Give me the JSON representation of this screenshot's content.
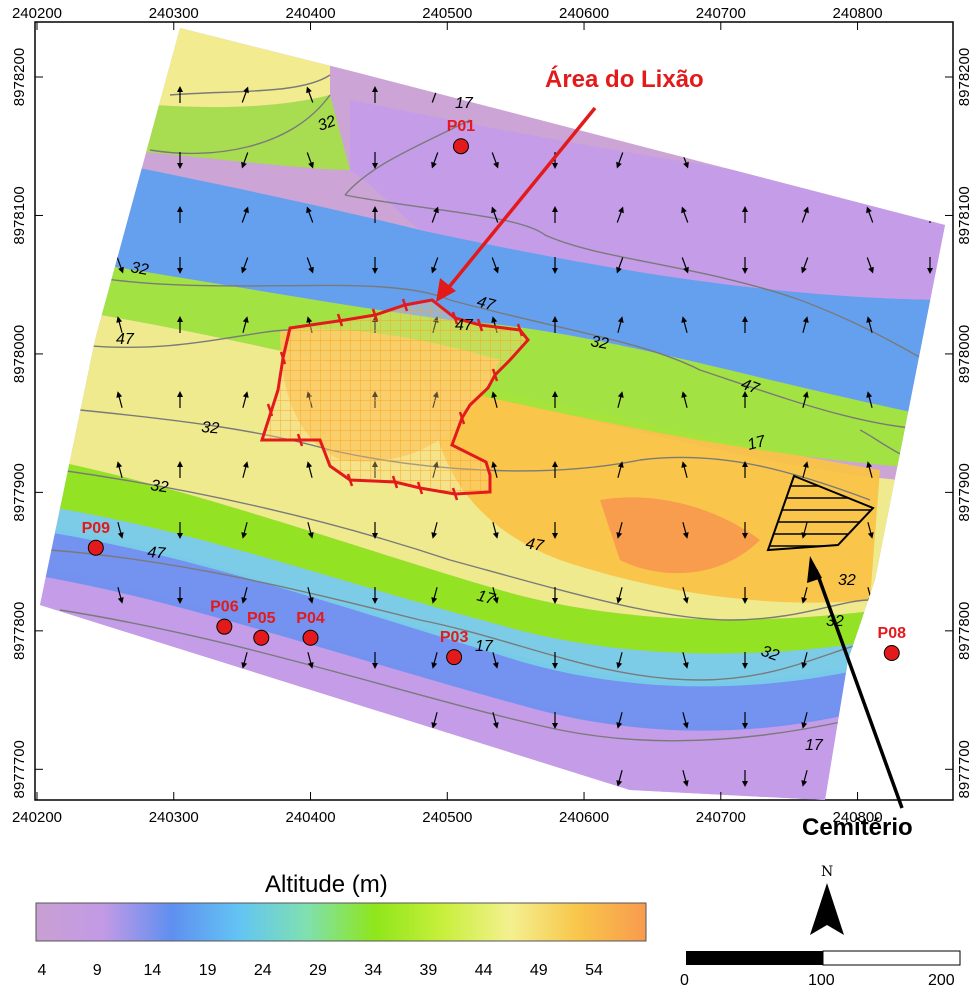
{
  "map": {
    "x_ticks": [
      "240200",
      "240300",
      "240400",
      "240500",
      "240600",
      "240700",
      "240800"
    ],
    "y_ticks": [
      "8978200",
      "8978100",
      "8978000",
      "8977900",
      "8977800",
      "8977700"
    ],
    "contour_labels": [
      "32",
      "17",
      "32",
      "47",
      "32",
      "47",
      "47",
      "32",
      "17",
      "47",
      "32",
      "47",
      "17",
      "32",
      "32",
      "17",
      "47",
      "32",
      "17"
    ],
    "wells": [
      {
        "id": "P01",
        "x": 240510,
        "y": 8978150
      },
      {
        "id": "P09",
        "x": 240243,
        "y": 8977860
      },
      {
        "id": "P06",
        "x": 240337,
        "y": 8977803
      },
      {
        "id": "P05",
        "x": 240364,
        "y": 8977795
      },
      {
        "id": "P04",
        "x": 240400,
        "y": 8977795
      },
      {
        "id": "P03",
        "x": 240505,
        "y": 8977781
      },
      {
        "id": "P08",
        "x": 240825,
        "y": 8977784
      }
    ],
    "annotations": {
      "dump": "Área do Lixão",
      "cemetery": "Cemitério"
    },
    "colors": {
      "dump_outline": "#e31a1c",
      "cemetery_outline": "#000000",
      "contour": "#7a7a7a",
      "well_marker": "#e31a1c"
    }
  },
  "legend": {
    "title": "Altitude (m)",
    "ticks": [
      "4",
      "9",
      "14",
      "19",
      "24",
      "29",
      "34",
      "39",
      "44",
      "49",
      "54"
    ],
    "colors": [
      "#c99fd3",
      "#c29ae6",
      "#5f8ff0",
      "#63c4f4",
      "#7fe0b0",
      "#8fe61a",
      "#c8ef3c",
      "#f4f090",
      "#f8c64a",
      "#f89a4e"
    ]
  },
  "scale_bar": {
    "labels": [
      "0",
      "100",
      "200"
    ]
  },
  "north_arrow": {
    "label": "N"
  }
}
